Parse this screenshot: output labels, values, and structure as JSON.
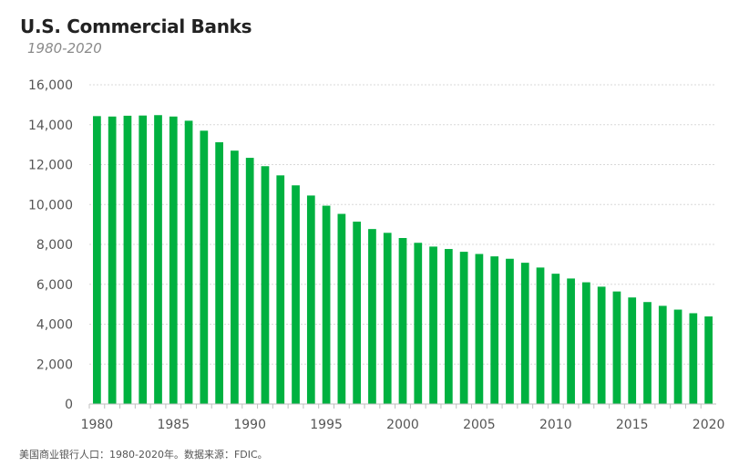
{
  "chart_data": {
    "type": "bar",
    "title": "U.S. Commercial Banks",
    "subtitle": "1980-2020",
    "caption": "美国商业银行人口：1980-2020年。数据来源：FDIC。",
    "xlabel": "",
    "ylabel": "",
    "ylim": [
      0,
      16000
    ],
    "y_ticks": [
      0,
      2000,
      4000,
      6000,
      8000,
      10000,
      12000,
      14000,
      16000
    ],
    "y_tick_labels": [
      "0",
      "2,000",
      "4,000",
      "6,000",
      "8,000",
      "10,000",
      "12,000",
      "14,000",
      "16,000"
    ],
    "x_tick_labels": [
      "1980",
      "1985",
      "1990",
      "1995",
      "2000",
      "2005",
      "2010",
      "2015",
      "2020"
    ],
    "categories": [
      "1980",
      "1981",
      "1982",
      "1983",
      "1984",
      "1985",
      "1986",
      "1987",
      "1988",
      "1989",
      "1990",
      "1991",
      "1992",
      "1993",
      "1994",
      "1995",
      "1996",
      "1997",
      "1998",
      "1999",
      "2000",
      "2001",
      "2002",
      "2003",
      "2004",
      "2005",
      "2006",
      "2007",
      "2008",
      "2009",
      "2010",
      "2011",
      "2012",
      "2013",
      "2014",
      "2015",
      "2016",
      "2017",
      "2018",
      "2019",
      "2020"
    ],
    "values": [
      14430,
      14410,
      14450,
      14460,
      14480,
      14410,
      14200,
      13700,
      13120,
      12700,
      12340,
      11920,
      11460,
      10960,
      10450,
      9940,
      9530,
      9140,
      8770,
      8580,
      8320,
      8080,
      7890,
      7770,
      7630,
      7520,
      7400,
      7280,
      7080,
      6840,
      6530,
      6290,
      6100,
      5880,
      5640,
      5340,
      5110,
      4920,
      4730,
      4550,
      4390
    ],
    "color": "#00b140",
    "grid": true,
    "legend": "none"
  }
}
